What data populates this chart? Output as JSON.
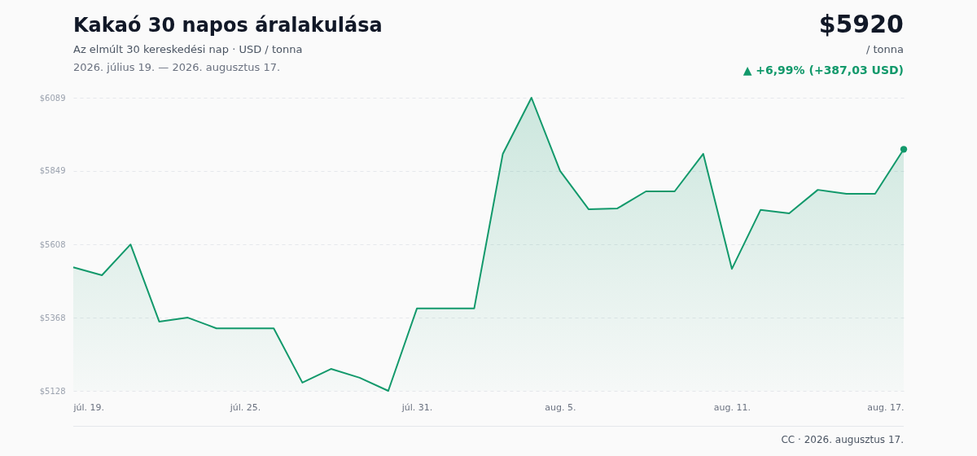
{
  "chart_data": {
    "type": "area",
    "title": "Kakaó 30 napos áralakulása",
    "subtitle": "Az elmúlt 30 kereskedési nap · USD / tonna",
    "annotations": [
      "2026. július 19. — 2026. augusztus 17.",
      "$5920",
      "/ tonna",
      "▲ +6,99% (+387,03 USD)",
      "CC · 2026. augusztus 17."
    ],
    "x": [
      "2026-07-19",
      "2026-07-20",
      "2026-07-21",
      "2026-07-22",
      "2026-07-23",
      "2026-07-24",
      "2026-07-25",
      "2026-07-26",
      "2026-07-27",
      "2026-07-28",
      "2026-07-29",
      "2026-07-30",
      "2026-07-31",
      "2026-08-01",
      "2026-08-02",
      "2026-08-03",
      "2026-08-04",
      "2026-08-05",
      "2026-08-06",
      "2026-08-07",
      "2026-08-08",
      "2026-08-09",
      "2026-08-10",
      "2026-08-11",
      "2026-08-12",
      "2026-08-13",
      "2026-08-14",
      "2026-08-15",
      "2026-08-16",
      "2026-08-17"
    ],
    "series": [
      {
        "color": "#12996b",
        "values": [
          5533,
          5507,
          5608,
          5355,
          5368,
          5333,
          5333,
          5333,
          5155,
          5200,
          5171,
          5128,
          5398,
          5398,
          5398,
          5905,
          6089,
          5849,
          5723,
          5726,
          5782,
          5782,
          5905,
          5528,
          5721,
          5710,
          5787,
          5774,
          5774,
          5920
        ]
      }
    ],
    "xlim": [
      "2026-07-19",
      "2026-08-17"
    ],
    "xticks": [
      {
        "value": "2026-07-19",
        "label": "júl. 19."
      },
      {
        "value": "2026-07-25",
        "label": "júl. 25."
      },
      {
        "value": "2026-07-31",
        "label": "júl. 31."
      },
      {
        "value": "2026-08-05",
        "label": "aug. 5."
      },
      {
        "value": "2026-08-11",
        "label": "aug. 11."
      },
      {
        "value": "2026-08-17",
        "label": "aug. 17."
      }
    ],
    "ylim": [
      5128,
      6089
    ],
    "yticks": [
      {
        "value": 5128,
        "label": "$5128"
      },
      {
        "value": 5368,
        "label": "$5368"
      },
      {
        "value": 5608,
        "label": "$5608"
      },
      {
        "value": 5849,
        "label": "$5849"
      },
      {
        "value": 6089,
        "label": "$6089"
      }
    ],
    "grid": "y",
    "line_style": "solid"
  }
}
